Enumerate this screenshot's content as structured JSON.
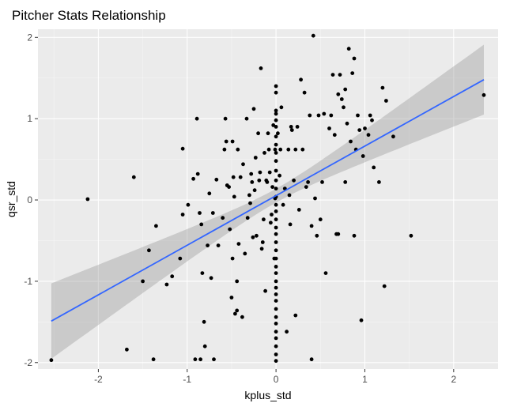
{
  "chart_data": {
    "type": "scatter",
    "title": "Pitcher Stats Relationship",
    "xlabel": "kplus_std",
    "ylabel": "qsr_std",
    "xlim": [
      -2.68,
      2.5
    ],
    "ylim": [
      -2.08,
      2.1
    ],
    "xticks": [
      -2,
      -1,
      0,
      1,
      2
    ],
    "yticks": [
      -2,
      -1,
      0,
      1,
      2
    ],
    "grid": true,
    "panel_background": "#ebebeb",
    "point_color": "#000000",
    "fit_line": {
      "method": "lm",
      "color": "#3366ff",
      "band_color": "#999999",
      "x": [
        -2.53,
        2.34
      ],
      "y": [
        -1.49,
        1.48
      ],
      "ci_at_ends": [
        0.42,
        0.43
      ]
    },
    "points": [
      [
        -2.53,
        -1.97
      ],
      [
        -2.12,
        0.01
      ],
      [
        -1.68,
        -1.84
      ],
      [
        -1.6,
        0.28
      ],
      [
        -1.5,
        -1.0
      ],
      [
        -1.43,
        -0.62
      ],
      [
        -1.38,
        -1.96
      ],
      [
        -1.35,
        -0.32
      ],
      [
        -1.23,
        -1.04
      ],
      [
        -1.17,
        -0.94
      ],
      [
        -1.08,
        -0.72
      ],
      [
        -1.05,
        0.63
      ],
      [
        -1.05,
        -0.18
      ],
      [
        -0.99,
        -0.06
      ],
      [
        -0.93,
        0.26
      ],
      [
        -0.91,
        -1.96
      ],
      [
        -0.89,
        1.0
      ],
      [
        -0.88,
        0.32
      ],
      [
        -0.86,
        -0.16
      ],
      [
        -0.85,
        -1.96
      ],
      [
        -0.84,
        -0.3
      ],
      [
        -0.83,
        -0.9
      ],
      [
        -0.81,
        -1.5
      ],
      [
        -0.8,
        -1.8
      ],
      [
        -0.77,
        -0.56
      ],
      [
        -0.75,
        0.08
      ],
      [
        -0.73,
        -0.96
      ],
      [
        -0.71,
        -0.16
      ],
      [
        -0.7,
        -1.96
      ],
      [
        -0.67,
        0.25
      ],
      [
        -0.65,
        -0.56
      ],
      [
        -0.6,
        -0.22
      ],
      [
        -0.58,
        0.62
      ],
      [
        -0.57,
        1.0
      ],
      [
        -0.56,
        0.72
      ],
      [
        -0.55,
        0.18
      ],
      [
        -0.53,
        0.16
      ],
      [
        -0.52,
        -0.36
      ],
      [
        -0.5,
        -1.2
      ],
      [
        -0.49,
        -0.72
      ],
      [
        -0.49,
        0.72
      ],
      [
        -0.48,
        0.28
      ],
      [
        -0.47,
        0.04
      ],
      [
        -0.46,
        -1.4
      ],
      [
        -0.44,
        -1.36
      ],
      [
        -0.44,
        -1.0
      ],
      [
        -0.43,
        0.62
      ],
      [
        -0.42,
        -0.54
      ],
      [
        -0.4,
        0.28
      ],
      [
        -0.38,
        -1.44
      ],
      [
        -0.37,
        0.44
      ],
      [
        -0.35,
        -0.66
      ],
      [
        -0.33,
        1.0
      ],
      [
        -0.32,
        -0.22
      ],
      [
        -0.3,
        0.06
      ],
      [
        -0.29,
        -0.04
      ],
      [
        -0.28,
        0.32
      ],
      [
        -0.27,
        0.22
      ],
      [
        -0.26,
        -0.46
      ],
      [
        -0.25,
        1.12
      ],
      [
        -0.24,
        0.12
      ],
      [
        -0.23,
        0.52
      ],
      [
        -0.22,
        -0.44
      ],
      [
        -0.2,
        0.82
      ],
      [
        -0.19,
        0.24
      ],
      [
        -0.18,
        0.34
      ],
      [
        -0.17,
        1.62
      ],
      [
        -0.16,
        -0.6
      ],
      [
        -0.15,
        -0.52
      ],
      [
        -0.14,
        -0.24
      ],
      [
        -0.13,
        0.58
      ],
      [
        -0.12,
        -1.12
      ],
      [
        -0.11,
        0.24
      ],
      [
        -0.1,
        0.22
      ],
      [
        -0.09,
        0.82
      ],
      [
        -0.08,
        0.62
      ],
      [
        -0.07,
        0.34
      ],
      [
        -0.06,
        -0.28
      ],
      [
        -0.05,
        -0.18
      ],
      [
        -0.04,
        0.16
      ],
      [
        -0.03,
        0.92
      ],
      [
        -0.02,
        -0.72
      ],
      [
        -0.01,
        0.02
      ],
      [
        -0.01,
        0.62
      ],
      [
        0.0,
        1.4
      ],
      [
        0.0,
        1.32
      ],
      [
        0.0,
        1.1
      ],
      [
        0.0,
        1.06
      ],
      [
        0.0,
        0.98
      ],
      [
        0.0,
        0.9
      ],
      [
        0.0,
        0.78
      ],
      [
        0.0,
        0.68
      ],
      [
        0.0,
        0.58
      ],
      [
        0.0,
        0.48
      ],
      [
        0.0,
        0.36
      ],
      [
        0.0,
        0.24
      ],
      [
        0.0,
        0.14
      ],
      [
        0.0,
        0.04
      ],
      [
        0.0,
        -0.06
      ],
      [
        0.0,
        -0.14
      ],
      [
        0.0,
        -0.24
      ],
      [
        0.0,
        -0.34
      ],
      [
        0.0,
        -0.42
      ],
      [
        0.0,
        -0.52
      ],
      [
        0.0,
        -0.62
      ],
      [
        0.0,
        -0.72
      ],
      [
        0.0,
        -0.82
      ],
      [
        0.0,
        -0.9
      ],
      [
        0.0,
        -1.0
      ],
      [
        0.0,
        -1.08
      ],
      [
        0.0,
        -1.16
      ],
      [
        0.0,
        -1.24
      ],
      [
        0.0,
        -1.34
      ],
      [
        0.0,
        -1.44
      ],
      [
        0.0,
        -1.52
      ],
      [
        0.0,
        -1.62
      ],
      [
        0.0,
        -1.7
      ],
      [
        0.0,
        -1.8
      ],
      [
        0.0,
        -1.9
      ],
      [
        0.0,
        -1.98
      ],
      [
        0.02,
        0.82
      ],
      [
        0.04,
        0.3
      ],
      [
        0.05,
        0.62
      ],
      [
        0.06,
        1.14
      ],
      [
        0.08,
        -0.06
      ],
      [
        0.1,
        0.14
      ],
      [
        0.12,
        -1.62
      ],
      [
        0.14,
        0.62
      ],
      [
        0.15,
        0.06
      ],
      [
        0.16,
        -0.3
      ],
      [
        0.17,
        0.9
      ],
      [
        0.18,
        0.86
      ],
      [
        0.2,
        0.24
      ],
      [
        0.22,
        -1.42
      ],
      [
        0.22,
        0.62
      ],
      [
        0.24,
        0.9
      ],
      [
        0.26,
        -0.12
      ],
      [
        0.28,
        1.48
      ],
      [
        0.3,
        0.62
      ],
      [
        0.32,
        1.32
      ],
      [
        0.34,
        0.16
      ],
      [
        0.36,
        0.22
      ],
      [
        0.38,
        1.04
      ],
      [
        0.4,
        -0.32
      ],
      [
        0.4,
        -1.96
      ],
      [
        0.42,
        2.02
      ],
      [
        0.44,
        0.02
      ],
      [
        0.46,
        -0.44
      ],
      [
        0.48,
        1.04
      ],
      [
        0.5,
        -0.24
      ],
      [
        0.52,
        0.22
      ],
      [
        0.54,
        1.06
      ],
      [
        0.56,
        -0.9
      ],
      [
        0.6,
        0.88
      ],
      [
        0.62,
        1.04
      ],
      [
        0.64,
        1.54
      ],
      [
        0.66,
        0.8
      ],
      [
        0.68,
        -0.42
      ],
      [
        0.7,
        1.3
      ],
      [
        0.72,
        1.54
      ],
      [
        0.74,
        1.24
      ],
      [
        0.76,
        1.14
      ],
      [
        0.78,
        1.36
      ],
      [
        0.78,
        0.22
      ],
      [
        0.8,
        0.94
      ],
      [
        0.82,
        1.86
      ],
      [
        0.84,
        0.72
      ],
      [
        0.86,
        1.56
      ],
      [
        0.88,
        1.74
      ],
      [
        0.9,
        0.62
      ],
      [
        0.92,
        1.04
      ],
      [
        0.94,
        0.86
      ],
      [
        0.96,
        -1.48
      ],
      [
        0.98,
        0.54
      ],
      [
        1.0,
        0.88
      ],
      [
        1.04,
        0.8
      ],
      [
        1.06,
        1.04
      ],
      [
        1.08,
        0.98
      ],
      [
        1.1,
        0.4
      ],
      [
        1.16,
        0.22
      ],
      [
        1.2,
        1.38
      ],
      [
        1.22,
        -1.06
      ],
      [
        1.24,
        1.22
      ],
      [
        1.32,
        0.78
      ],
      [
        1.52,
        -0.44
      ],
      [
        0.7,
        -0.42
      ],
      [
        0.88,
        -0.44
      ],
      [
        2.34,
        1.29
      ]
    ]
  }
}
